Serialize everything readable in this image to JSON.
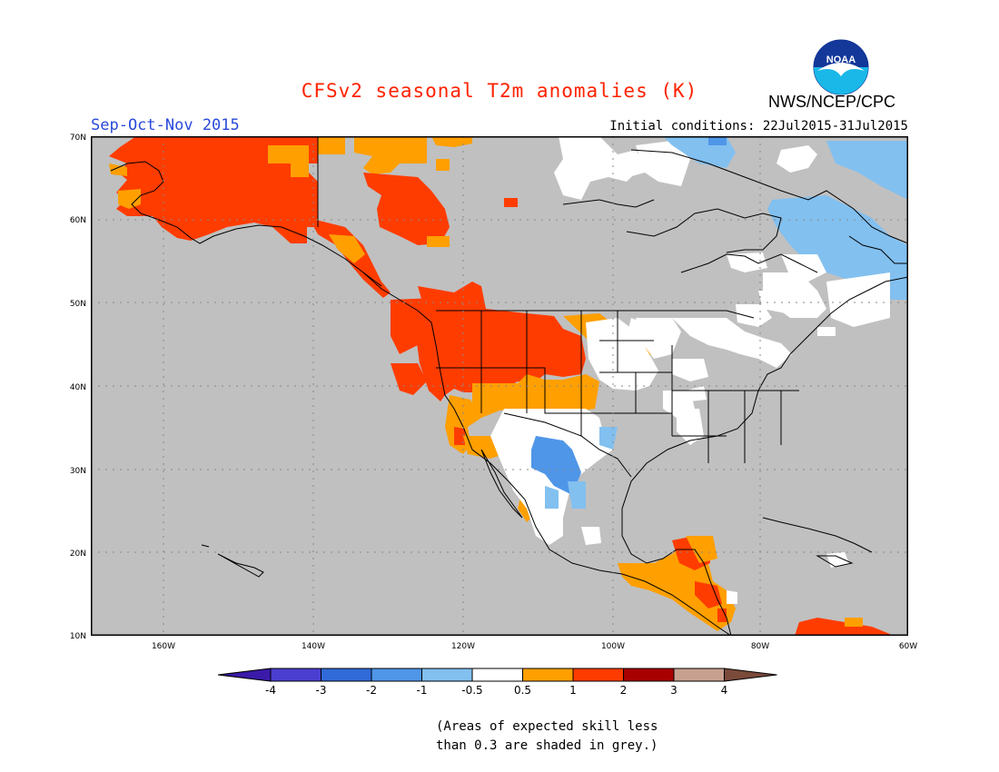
{
  "title": "CFSv2 seasonal T2m anomalies (K)",
  "season": "Sep-Oct-Nov 2015",
  "initial_conditions": "Initial conditions: 22Jul2015-31Jul2015",
  "agency": "NWS/NCEP/CPC",
  "logo_text": "NOAA",
  "lat_labels": [
    "70N",
    "60N",
    "50N",
    "40N",
    "30N",
    "20N",
    "10N"
  ],
  "lon_labels": [
    "160W",
    "140W",
    "120W",
    "100W",
    "80W",
    "60W"
  ],
  "colorbar": {
    "labels": [
      "-4",
      "-3",
      "-2",
      "-1",
      "-0.5",
      "0.5",
      "1",
      "2",
      "3",
      "4"
    ],
    "colors": [
      "#3a1aa8",
      "#4a3ed0",
      "#2f6ad8",
      "#4f96e8",
      "#82c0f0",
      "#ffffff",
      "#ff9f00",
      "#ff3c00",
      "#a80000",
      "#c8a090",
      "#7a4a3a"
    ]
  },
  "note_line1": "(Areas of expected skill less",
  "note_line2": "than 0.3 are shaded in grey.)",
  "colors": {
    "title": "#ff2200",
    "season": "#2a4ad8",
    "no_skill_grey": "#c0c0c0"
  }
}
